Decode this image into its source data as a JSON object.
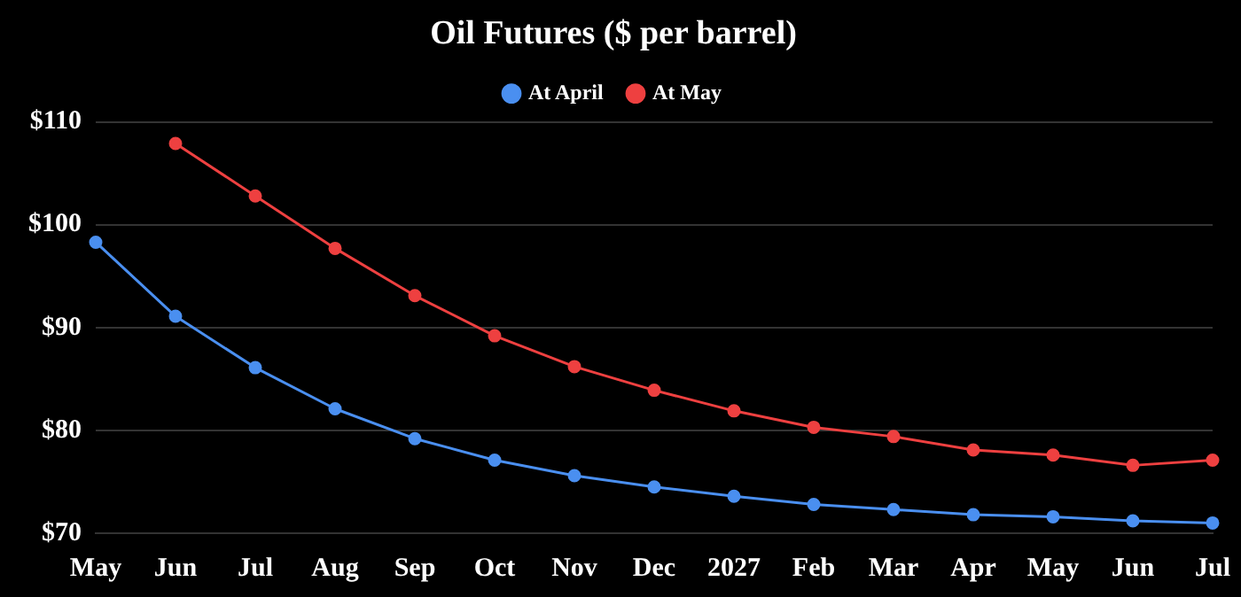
{
  "chart_data": {
    "type": "line",
    "title": "Oil Futures ($ per barrel)",
    "categories": [
      "May",
      "Jun",
      "Jul",
      "Aug",
      "Sep",
      "Oct",
      "Nov",
      "Dec",
      "2027",
      "Feb",
      "Mar",
      "Apr",
      "May",
      "Jun",
      "Jul"
    ],
    "series": [
      {
        "name": "At April",
        "color": "#4a8ff0",
        "values": [
          98.3,
          91.1,
          86.1,
          82.1,
          79.2,
          77.1,
          75.6,
          74.5,
          73.6,
          72.8,
          72.3,
          71.8,
          71.6,
          71.2,
          71.0
        ]
      },
      {
        "name": "At May",
        "color": "#ee4040",
        "values": [
          null,
          107.9,
          102.8,
          97.7,
          93.1,
          89.2,
          86.2,
          83.9,
          81.9,
          80.3,
          79.4,
          78.1,
          77.6,
          76.6,
          77.1
        ]
      }
    ],
    "ylim": [
      70,
      110
    ],
    "yticks": [
      {
        "value": 70,
        "label": "$70"
      },
      {
        "value": 80,
        "label": "$80"
      },
      {
        "value": 90,
        "label": "$90"
      },
      {
        "value": 100,
        "label": "$100"
      },
      {
        "value": 110,
        "label": "$110"
      }
    ],
    "grid": "y",
    "legend": "top",
    "marker": "circle",
    "line_style": "solid"
  }
}
